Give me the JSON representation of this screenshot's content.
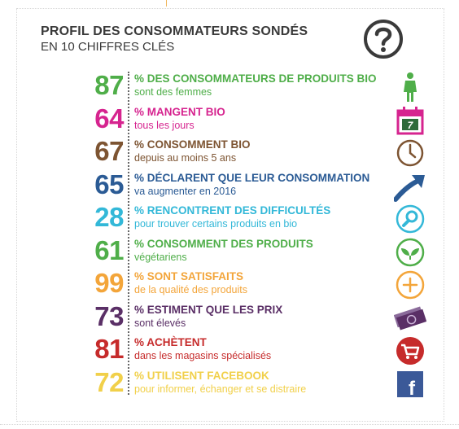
{
  "header": {
    "title_line1": "PROFIL DES CONSOMMATEURS SONDÉS",
    "title_line2": "EN 10 CHIFFRES CLÉS"
  },
  "stats": [
    {
      "value": "87",
      "heading": "% DES CONSOMMATEURS DE PRODUITS BIO",
      "detail": "sont des femmes",
      "color": "#4fae49",
      "icon": "woman-icon"
    },
    {
      "value": "64",
      "heading": "% MANGENT BIO",
      "detail": "tous les jours",
      "color": "#d6248f",
      "icon": "calendar-icon"
    },
    {
      "value": "67",
      "heading": "% CONSOMMENT BIO",
      "detail": "depuis au moins 5 ans",
      "color": "#7d5432",
      "icon": "clock-icon"
    },
    {
      "value": "65",
      "heading": "% DÉCLARENT QUE LEUR CONSOMMATION",
      "detail": "va augmenter en 2016",
      "color": "#2b5b95",
      "icon": "trend-arrow-icon"
    },
    {
      "value": "28",
      "heading": "% RENCONTRENT DES DIFFICULTÉS",
      "detail": "pour trouver certains produits en bio",
      "color": "#33b8d8",
      "icon": "magnifier-icon"
    },
    {
      "value": "61",
      "heading": "% CONSOMMENT DES PRODUITS",
      "detail": "végétariens",
      "color": "#4fae49",
      "icon": "leaf-icon"
    },
    {
      "value": "99",
      "heading": "% SONT SATISFAITS",
      "detail": "de la qualité des produits",
      "color": "#f3a53a",
      "icon": "plus-icon"
    },
    {
      "value": "73",
      "heading": "% ESTIMENT QUE LES PRIX",
      "detail": "sont élevés",
      "color": "#5a2f66",
      "icon": "banknotes-icon"
    },
    {
      "value": "81",
      "heading": "% ACHÈTENT",
      "detail": "dans les magasins spécialisés",
      "color": "#c62b2b",
      "icon": "shopping-cart-icon"
    },
    {
      "value": "72",
      "heading": "% UTILISENT FACEBOOK",
      "detail": "pour informer, échanger et se distraire",
      "color": "#f1d04a",
      "icon": "facebook-icon"
    }
  ],
  "calendar_day": "7",
  "facebook_letter": "f"
}
